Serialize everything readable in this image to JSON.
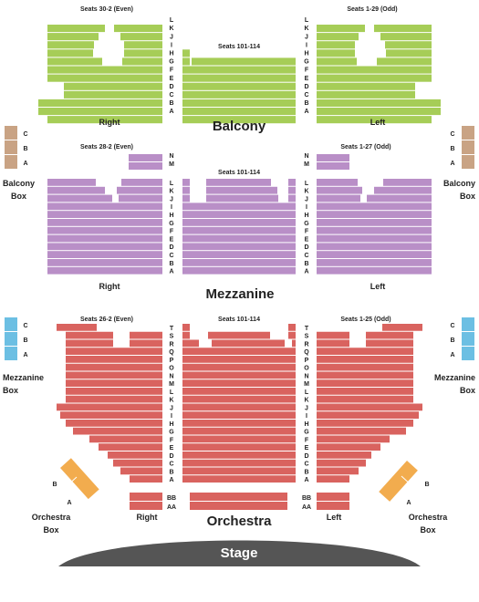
{
  "colors": {
    "balcony": "#a6cd57",
    "mezzanine": "#b98fc7",
    "orchestra": "#d9635f",
    "balcony_box": "#c9a384",
    "mezzanine_box": "#6cbfe3",
    "orchestra_box": "#f2ac4e",
    "stage": "#555555"
  },
  "balcony": {
    "title": "Balcony",
    "left_seats": "Seats 30-2 (Even)",
    "center_seats": "Seats 101-114",
    "right_seats": "Seats 1-29 (Odd)",
    "left_side": "Right",
    "right_side": "Left",
    "rows": [
      "L",
      "K",
      "J",
      "I",
      "H",
      "G",
      "F",
      "E",
      "D",
      "C",
      "B",
      "A"
    ]
  },
  "balcony_box": {
    "label_line1": "Balcony",
    "label_line2": "Box",
    "rows": [
      "C",
      "B",
      "A"
    ]
  },
  "mezzanine": {
    "title": "Mezzanine",
    "left_seats": "Seats 28-2 (Even)",
    "center_seats": "Seats 101-114",
    "right_seats": "Seats 1-27 (Odd)",
    "left_side": "Right",
    "right_side": "Left",
    "upper_rows": [
      "N",
      "M"
    ],
    "rows": [
      "L",
      "K",
      "J",
      "I",
      "H",
      "G",
      "F",
      "E",
      "D",
      "C",
      "B",
      "A"
    ]
  },
  "mezzanine_box": {
    "label_line1": "Mezzanine",
    "label_line2": "Box",
    "rows": [
      "C",
      "B",
      "A"
    ]
  },
  "orchestra": {
    "title": "Orchestra",
    "left_seats": "Seats 26-2 (Even)",
    "center_seats": "Seats 101-114",
    "right_seats": "Seats 1-25 (Odd)",
    "left_side": "Right",
    "right_side": "Left",
    "rows": [
      "T",
      "S",
      "R",
      "Q",
      "P",
      "O",
      "N",
      "M",
      "L",
      "K",
      "J",
      "I",
      "H",
      "G",
      "F",
      "E",
      "D",
      "C",
      "B",
      "A"
    ],
    "front_rows": [
      "BB",
      "AA"
    ]
  },
  "orchestra_box": {
    "label_line1": "Orchestra",
    "label_line2": "Box",
    "rows": [
      "B",
      "A"
    ]
  },
  "stage": {
    "label": "Stage"
  }
}
